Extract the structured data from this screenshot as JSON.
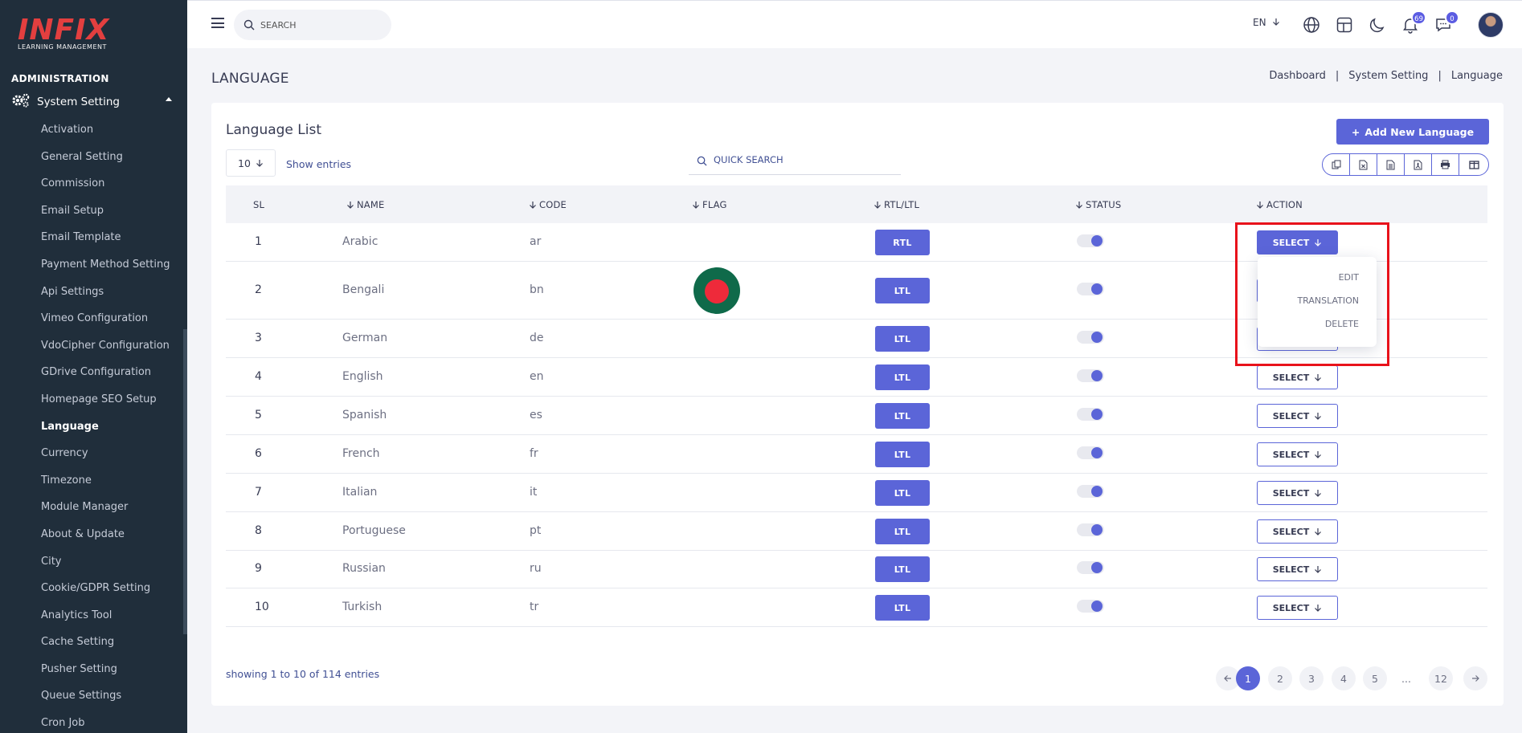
{
  "brand": {
    "logo_text": "INFIX",
    "logo_sub": "LEARNING MANAGEMENT"
  },
  "sidebar": {
    "section_title": "ADMINISTRATION",
    "parent_label": "System Setting",
    "items": [
      {
        "label": "Activation"
      },
      {
        "label": "General Setting"
      },
      {
        "label": "Commission"
      },
      {
        "label": "Email Setup"
      },
      {
        "label": "Email Template"
      },
      {
        "label": "Payment Method Setting"
      },
      {
        "label": "Api Settings"
      },
      {
        "label": "Vimeo Configuration"
      },
      {
        "label": "VdoCipher Configuration"
      },
      {
        "label": "GDrive Configuration"
      },
      {
        "label": "Homepage SEO Setup"
      },
      {
        "label": "Language"
      },
      {
        "label": "Currency"
      },
      {
        "label": "Timezone"
      },
      {
        "label": "Module Manager"
      },
      {
        "label": "About & Update"
      },
      {
        "label": "City"
      },
      {
        "label": "Cookie/GDPR Setting"
      },
      {
        "label": "Analytics Tool"
      },
      {
        "label": "Cache Setting"
      },
      {
        "label": "Pusher Setting"
      },
      {
        "label": "Queue Settings"
      },
      {
        "label": "Cron Job"
      }
    ],
    "active_item": "Language"
  },
  "topbar": {
    "search_placeholder": "SEARCH",
    "language": "EN",
    "notifications_count": "69",
    "messages_count": "0",
    "icons": [
      "menu-icon",
      "search-icon",
      "globe-icon",
      "layout-icon",
      "moon-icon",
      "bell-icon",
      "chat-icon"
    ]
  },
  "page": {
    "title": "LANGUAGE",
    "breadcrumb": [
      "Dashboard",
      "System Setting",
      "Language"
    ]
  },
  "card": {
    "title": "Language List",
    "add_button": "Add New Language",
    "entries_value": "10",
    "show_entries_label": "Show entries",
    "quick_search_placeholder": "QUICK SEARCH",
    "export_icons": [
      "copy-icon",
      "excel-icon",
      "csv-icon",
      "pdf-icon",
      "print-icon",
      "columns-icon"
    ]
  },
  "table": {
    "headers": {
      "sl": "SL",
      "name": "NAME",
      "code": "CODE",
      "flag": "FLAG",
      "rtl": "RTL/LTL",
      "status": "STATUS",
      "action": "ACTION"
    },
    "select_label": "SELECT",
    "rows": [
      {
        "sl": "1",
        "name": "Arabic",
        "code": "ar",
        "direction": "RTL",
        "status_on": true,
        "flag": ""
      },
      {
        "sl": "2",
        "name": "Bengali",
        "code": "bn",
        "direction": "LTL",
        "status_on": true,
        "flag": "bangladesh-flag"
      },
      {
        "sl": "3",
        "name": "German",
        "code": "de",
        "direction": "LTL",
        "status_on": true,
        "flag": ""
      },
      {
        "sl": "4",
        "name": "English",
        "code": "en",
        "direction": "LTL",
        "status_on": true,
        "flag": ""
      },
      {
        "sl": "5",
        "name": "Spanish",
        "code": "es",
        "direction": "LTL",
        "status_on": true,
        "flag": ""
      },
      {
        "sl": "6",
        "name": "French",
        "code": "fr",
        "direction": "LTL",
        "status_on": true,
        "flag": ""
      },
      {
        "sl": "7",
        "name": "Italian",
        "code": "it",
        "direction": "LTL",
        "status_on": true,
        "flag": ""
      },
      {
        "sl": "8",
        "name": "Portuguese",
        "code": "pt",
        "direction": "LTL",
        "status_on": true,
        "flag": ""
      },
      {
        "sl": "9",
        "name": "Russian",
        "code": "ru",
        "direction": "LTL",
        "status_on": true,
        "flag": ""
      },
      {
        "sl": "10",
        "name": "Turkish",
        "code": "tr",
        "direction": "LTL",
        "status_on": true,
        "flag": ""
      }
    ]
  },
  "dropdown": {
    "items": [
      "EDIT",
      "TRANSLATION",
      "DELETE"
    ]
  },
  "footer": {
    "showing": "showing 1 to 10 of 114 entries",
    "pages": [
      "1",
      "2",
      "3",
      "4",
      "5",
      "...",
      "12"
    ],
    "current_page": "1"
  },
  "colors": {
    "accent": "#5b65d8",
    "sidebar_bg": "#202e3b",
    "highlight_border": "#e8121b",
    "logo": "#e33f3f"
  }
}
